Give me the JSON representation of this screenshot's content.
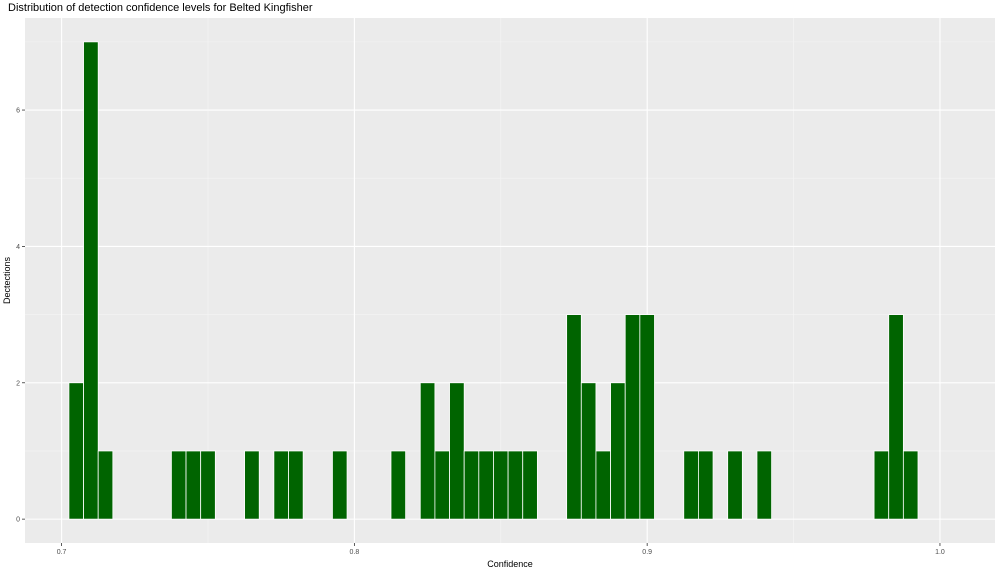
{
  "chart_data": {
    "type": "bar",
    "title": "Distribution of detection confidence levels for Belted Kingfisher",
    "xlabel": "Confidence",
    "ylabel": "Dectections",
    "xlim": [
      0.6875,
      1.0188
    ],
    "ylim": [
      -0.35,
      7.35
    ],
    "x_ticks": [
      0.7,
      0.8,
      0.9,
      1.0
    ],
    "x_tick_labels": [
      "0.7",
      "0.8",
      "0.9",
      "1.0"
    ],
    "y_ticks": [
      0,
      2,
      4,
      6
    ],
    "y_tick_labels": [
      "0",
      "2",
      "4",
      "6"
    ],
    "bin_width": 0.005,
    "bins": [
      {
        "x": 0.705,
        "count": 2
      },
      {
        "x": 0.71,
        "count": 7
      },
      {
        "x": 0.715,
        "count": 1
      },
      {
        "x": 0.74,
        "count": 1
      },
      {
        "x": 0.745,
        "count": 1
      },
      {
        "x": 0.75,
        "count": 1
      },
      {
        "x": 0.765,
        "count": 1
      },
      {
        "x": 0.775,
        "count": 1
      },
      {
        "x": 0.78,
        "count": 1
      },
      {
        "x": 0.795,
        "count": 1
      },
      {
        "x": 0.815,
        "count": 1
      },
      {
        "x": 0.825,
        "count": 2
      },
      {
        "x": 0.83,
        "count": 1
      },
      {
        "x": 0.835,
        "count": 2
      },
      {
        "x": 0.84,
        "count": 1
      },
      {
        "x": 0.845,
        "count": 1
      },
      {
        "x": 0.85,
        "count": 1
      },
      {
        "x": 0.855,
        "count": 1
      },
      {
        "x": 0.86,
        "count": 1
      },
      {
        "x": 0.875,
        "count": 3
      },
      {
        "x": 0.88,
        "count": 2
      },
      {
        "x": 0.885,
        "count": 1
      },
      {
        "x": 0.89,
        "count": 2
      },
      {
        "x": 0.895,
        "count": 3
      },
      {
        "x": 0.9,
        "count": 3
      },
      {
        "x": 0.915,
        "count": 1
      },
      {
        "x": 0.92,
        "count": 1
      },
      {
        "x": 0.93,
        "count": 1
      },
      {
        "x": 0.94,
        "count": 1
      },
      {
        "x": 0.98,
        "count": 1
      },
      {
        "x": 0.985,
        "count": 3
      },
      {
        "x": 0.99,
        "count": 1
      }
    ],
    "bar_color": "#006400",
    "panel_background": "#ebebeb",
    "grid": true,
    "legend": "none"
  }
}
